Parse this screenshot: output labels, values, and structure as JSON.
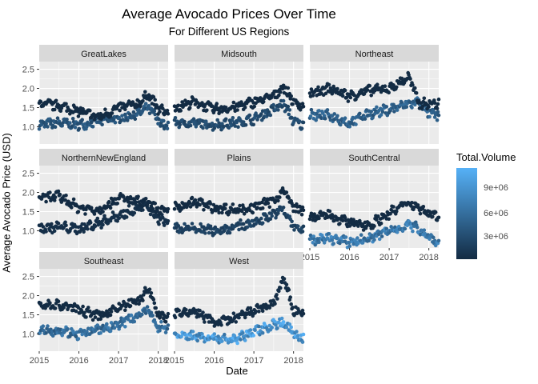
{
  "chart_data": {
    "type": "scatter",
    "title": "Average Avocado Prices Over Time",
    "subtitle": "For Different US Regions",
    "xlabel": "Date",
    "ylabel": "Average Avocado Price (USD)",
    "xlim": [
      "2015-01-01",
      "2018-03-31"
    ],
    "ylim": [
      0.55,
      2.7
    ],
    "x_ticks": [
      "2015",
      "2016",
      "2017",
      "2018"
    ],
    "y_ticks": [
      "1.0",
      "1.5",
      "2.0",
      "2.5"
    ],
    "grid": true,
    "facet_by": "region",
    "color_by": "Total.Volume",
    "legend": {
      "title": "Total.Volume",
      "position": "right",
      "labels": [
        "3e+06",
        "6e+06",
        "9e+06"
      ],
      "low_color": "#132b43",
      "high_color": "#56b1f7",
      "range": [
        100000,
        11500000
      ]
    },
    "colors": {
      "panel_bg": "#ebebeb",
      "strip_bg": "#d9d9d9",
      "grid": "#ffffff"
    },
    "panels": [
      {
        "region": "GreatLakes",
        "conventional": [
          [
            2015.0,
            1.05
          ],
          [
            2015.5,
            1.1
          ],
          [
            2016.0,
            1.05
          ],
          [
            2016.5,
            1.15
          ],
          [
            2017.0,
            1.2
          ],
          [
            2017.5,
            1.35
          ],
          [
            2017.75,
            1.5
          ],
          [
            2018.0,
            1.15
          ],
          [
            2018.2,
            1.0
          ]
        ],
        "organic": [
          [
            2015.0,
            1.6
          ],
          [
            2015.5,
            1.55
          ],
          [
            2016.0,
            1.4
          ],
          [
            2016.5,
            1.25
          ],
          [
            2017.0,
            1.5
          ],
          [
            2017.5,
            1.6
          ],
          [
            2017.75,
            1.85
          ],
          [
            2018.0,
            1.45
          ],
          [
            2018.2,
            1.4
          ]
        ],
        "conv_volume": 3500000,
        "org_volume": 150000
      },
      {
        "region": "Midsouth",
        "conventional": [
          [
            2015.0,
            1.1
          ],
          [
            2015.5,
            1.1
          ],
          [
            2016.0,
            1.05
          ],
          [
            2016.5,
            1.1
          ],
          [
            2017.0,
            1.2
          ],
          [
            2017.5,
            1.45
          ],
          [
            2017.75,
            1.6
          ],
          [
            2018.0,
            1.15
          ],
          [
            2018.2,
            1.05
          ]
        ],
        "organic": [
          [
            2015.0,
            1.5
          ],
          [
            2015.5,
            1.65
          ],
          [
            2016.0,
            1.45
          ],
          [
            2016.5,
            1.5
          ],
          [
            2017.0,
            1.65
          ],
          [
            2017.5,
            1.8
          ],
          [
            2017.75,
            2.05
          ],
          [
            2018.0,
            1.65
          ],
          [
            2018.2,
            1.55
          ]
        ],
        "conv_volume": 2800000,
        "org_volume": 120000
      },
      {
        "region": "Northeast",
        "conventional": [
          [
            2015.0,
            1.3
          ],
          [
            2015.5,
            1.3
          ],
          [
            2016.0,
            1.1
          ],
          [
            2016.5,
            1.35
          ],
          [
            2017.0,
            1.45
          ],
          [
            2017.5,
            1.6
          ],
          [
            2017.75,
            1.65
          ],
          [
            2018.0,
            1.35
          ],
          [
            2018.2,
            1.3
          ]
        ],
        "organic": [
          [
            2015.0,
            1.85
          ],
          [
            2015.5,
            2.0
          ],
          [
            2016.0,
            1.8
          ],
          [
            2016.5,
            1.95
          ],
          [
            2017.0,
            2.0
          ],
          [
            2017.5,
            2.3
          ],
          [
            2017.75,
            1.6
          ],
          [
            2018.0,
            1.6
          ],
          [
            2018.2,
            1.6
          ]
        ],
        "conv_volume": 4500000,
        "org_volume": 200000
      },
      {
        "region": "NorthernNewEngland",
        "conventional": [
          [
            2015.0,
            1.05
          ],
          [
            2015.5,
            1.1
          ],
          [
            2016.0,
            1.05
          ],
          [
            2016.5,
            1.2
          ],
          [
            2017.0,
            1.4
          ],
          [
            2017.5,
            1.6
          ],
          [
            2017.75,
            1.6
          ],
          [
            2018.0,
            1.3
          ],
          [
            2018.2,
            1.25
          ]
        ],
        "organic": [
          [
            2015.0,
            1.85
          ],
          [
            2015.5,
            1.9
          ],
          [
            2016.0,
            1.6
          ],
          [
            2016.5,
            1.55
          ],
          [
            2017.0,
            1.85
          ],
          [
            2017.5,
            1.75
          ],
          [
            2017.75,
            1.7
          ],
          [
            2018.0,
            1.55
          ],
          [
            2018.2,
            1.5
          ]
        ],
        "conv_volume": 500000,
        "org_volume": 30000
      },
      {
        "region": "Plains",
        "conventional": [
          [
            2015.0,
            1.05
          ],
          [
            2015.5,
            1.05
          ],
          [
            2016.0,
            1.0
          ],
          [
            2016.5,
            1.1
          ],
          [
            2017.0,
            1.2
          ],
          [
            2017.5,
            1.45
          ],
          [
            2017.75,
            1.55
          ],
          [
            2018.0,
            1.1
          ],
          [
            2018.2,
            1.05
          ]
        ],
        "organic": [
          [
            2015.0,
            1.6
          ],
          [
            2015.5,
            1.75
          ],
          [
            2016.0,
            1.6
          ],
          [
            2016.5,
            1.55
          ],
          [
            2017.0,
            1.6
          ],
          [
            2017.5,
            1.8
          ],
          [
            2017.75,
            2.05
          ],
          [
            2018.0,
            1.6
          ],
          [
            2018.2,
            1.55
          ]
        ],
        "conv_volume": 2000000,
        "org_volume": 90000
      },
      {
        "region": "SouthCentral",
        "conventional": [
          [
            2015.0,
            0.75
          ],
          [
            2015.5,
            0.8
          ],
          [
            2016.0,
            0.7
          ],
          [
            2016.5,
            0.8
          ],
          [
            2017.0,
            1.0
          ],
          [
            2017.5,
            1.15
          ],
          [
            2017.75,
            1.05
          ],
          [
            2018.0,
            0.85
          ],
          [
            2018.2,
            0.7
          ]
        ],
        "organic": [
          [
            2015.0,
            1.35
          ],
          [
            2015.5,
            1.4
          ],
          [
            2016.0,
            1.2
          ],
          [
            2016.5,
            1.15
          ],
          [
            2017.0,
            1.45
          ],
          [
            2017.5,
            1.75
          ],
          [
            2017.75,
            1.6
          ],
          [
            2018.0,
            1.45
          ],
          [
            2018.2,
            1.4
          ]
        ],
        "conv_volume": 6500000,
        "org_volume": 160000
      },
      {
        "region": "Southeast",
        "conventional": [
          [
            2015.0,
            1.1
          ],
          [
            2015.5,
            1.1
          ],
          [
            2016.0,
            1.0
          ],
          [
            2016.5,
            1.1
          ],
          [
            2017.0,
            1.25
          ],
          [
            2017.5,
            1.5
          ],
          [
            2017.75,
            1.6
          ],
          [
            2018.0,
            1.2
          ],
          [
            2018.2,
            1.15
          ]
        ],
        "organic": [
          [
            2015.0,
            1.75
          ],
          [
            2015.5,
            1.75
          ],
          [
            2016.0,
            1.65
          ],
          [
            2016.5,
            1.45
          ],
          [
            2017.0,
            1.7
          ],
          [
            2017.5,
            1.85
          ],
          [
            2017.75,
            2.2
          ],
          [
            2018.0,
            1.5
          ],
          [
            2018.2,
            1.45
          ]
        ],
        "conv_volume": 5500000,
        "org_volume": 140000
      },
      {
        "region": "West",
        "conventional": [
          [
            2015.0,
            0.95
          ],
          [
            2015.5,
            0.95
          ],
          [
            2016.0,
            0.9
          ],
          [
            2016.5,
            0.85
          ],
          [
            2017.0,
            1.05
          ],
          [
            2017.5,
            1.25
          ],
          [
            2017.75,
            1.3
          ],
          [
            2018.0,
            1.0
          ],
          [
            2018.2,
            0.9
          ]
        ],
        "organic": [
          [
            2015.0,
            1.5
          ],
          [
            2015.5,
            1.6
          ],
          [
            2016.0,
            1.3
          ],
          [
            2016.5,
            1.4
          ],
          [
            2017.0,
            1.6
          ],
          [
            2017.5,
            1.8
          ],
          [
            2017.75,
            2.45
          ],
          [
            2018.0,
            1.6
          ],
          [
            2018.2,
            1.55
          ]
        ],
        "conv_volume": 9000000,
        "org_volume": 300000
      }
    ]
  }
}
